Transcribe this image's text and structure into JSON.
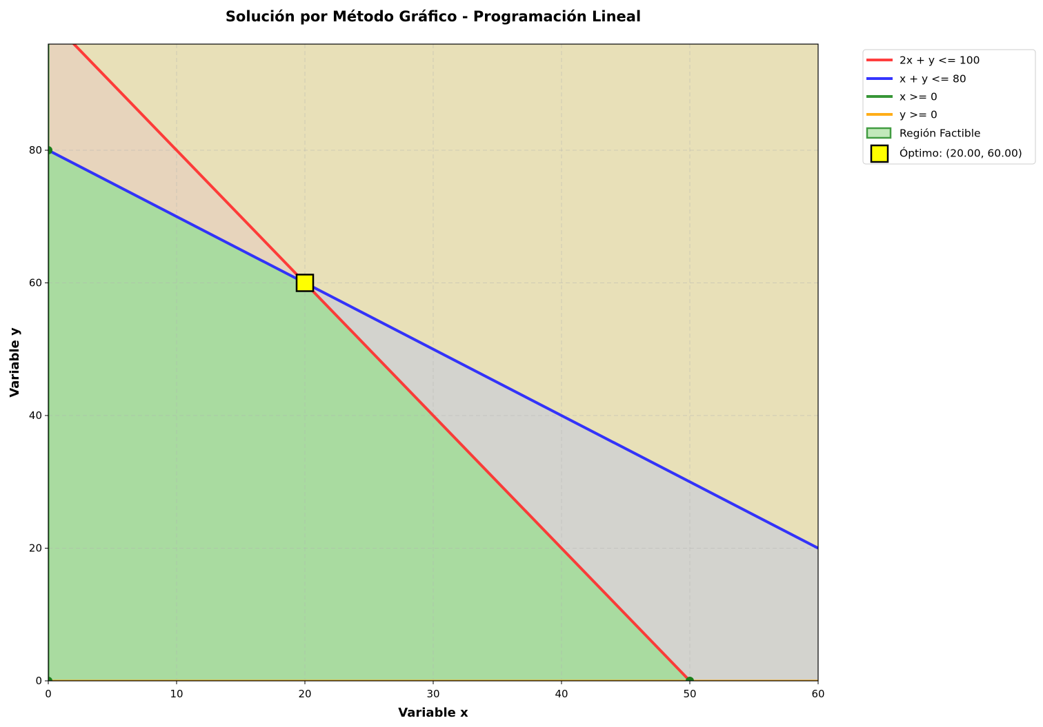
{
  "chart_data": {
    "type": "line",
    "title": "Solución por Método Gráfico - Programación Lineal",
    "xlabel": "Variable x",
    "ylabel": "Variable y",
    "xlim": [
      0,
      60
    ],
    "ylim": [
      0,
      96
    ],
    "xticks": [
      0,
      10,
      20,
      30,
      40,
      50,
      60
    ],
    "yticks": [
      0,
      20,
      40,
      60,
      80
    ],
    "grid": true,
    "legend_position": "outside-top-right",
    "series": [
      {
        "name": "2x + y <= 100",
        "color": "#ff2a2a",
        "points": [
          [
            0,
            100
          ],
          [
            50,
            0
          ]
        ]
      },
      {
        "name": "x + y <= 80",
        "color": "#2020ff",
        "points": [
          [
            0,
            80
          ],
          [
            60,
            20
          ]
        ]
      },
      {
        "name": "x >= 0",
        "color": "#228b22",
        "points": [
          [
            0,
            0
          ],
          [
            0,
            96
          ]
        ]
      },
      {
        "name": "y >= 0",
        "color": "#ffa500",
        "points": [
          [
            0,
            0
          ],
          [
            60,
            0
          ]
        ]
      }
    ],
    "regions": [
      {
        "name": "constraint-1-infeasible",
        "color": "#e8e0b8",
        "polygon": [
          [
            0,
            100
          ],
          [
            0,
            96
          ],
          [
            60,
            96
          ],
          [
            60,
            0
          ],
          [
            50,
            0
          ]
        ]
      },
      {
        "name": "constraint-2-infeasible",
        "color": "#d3d3ce",
        "polygon": [
          [
            0,
            80
          ],
          [
            60,
            20
          ],
          [
            60,
            0
          ],
          [
            50,
            0
          ],
          [
            20,
            60
          ]
        ]
      },
      {
        "name": "constraint-upper-overlap",
        "color": "#e7d4bc",
        "polygon": [
          [
            0,
            100
          ],
          [
            0,
            80
          ],
          [
            20,
            60
          ]
        ]
      }
    ],
    "feasible_region": {
      "name": "Región Factible",
      "color": "#a9dba0",
      "edge_color": "#228b22",
      "vertices": [
        [
          0,
          0
        ],
        [
          0,
          80
        ],
        [
          20,
          60
        ],
        [
          50,
          0
        ]
      ]
    },
    "vertex_points": [
      [
        0,
        0
      ],
      [
        0,
        80
      ],
      [
        50,
        0
      ]
    ],
    "optimum": {
      "label": "Óptimo: (20.00, 60.00)",
      "x": 20,
      "y": 60,
      "color": "#ffff00"
    },
    "legend_entries": [
      "2x + y <= 100",
      "x + y <= 80",
      "x >= 0",
      "y >= 0",
      "Región Factible",
      "Óptimo: (20.00, 60.00)"
    ]
  }
}
